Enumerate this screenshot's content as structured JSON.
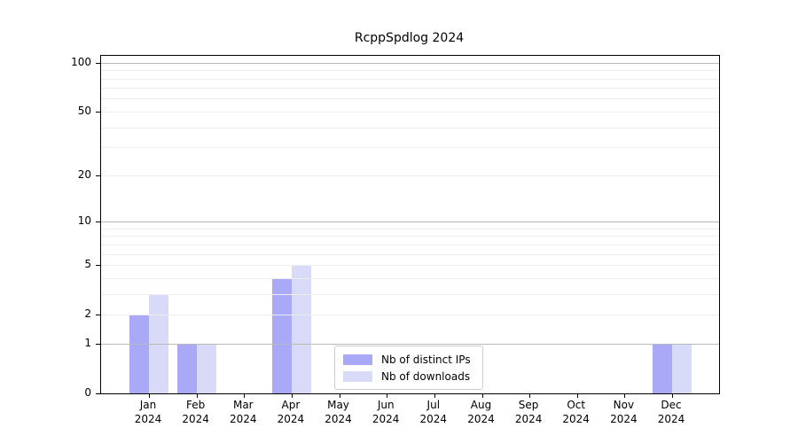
{
  "title": "RcppSpdlog 2024",
  "chart_data": {
    "type": "bar",
    "title": "RcppSpdlog 2024",
    "categories": [
      "Jan",
      "Feb",
      "Mar",
      "Apr",
      "May",
      "Jun",
      "Jul",
      "Aug",
      "Sep",
      "Oct",
      "Nov",
      "Dec"
    ],
    "category_year": "2024",
    "series": [
      {
        "name": "Nb of distinct IPs",
        "color": "#a9a9f7",
        "values": [
          2,
          1,
          0,
          4,
          0,
          0,
          0,
          0,
          0,
          0,
          0,
          1
        ]
      },
      {
        "name": "Nb of downloads",
        "color": "#d9d9f8",
        "values": [
          3,
          1,
          0,
          5,
          0,
          0,
          0,
          0,
          0,
          0,
          0,
          1
        ]
      }
    ],
    "xlabel": "",
    "ylabel": "",
    "y_scale": "log1p",
    "ylim": [
      0,
      110
    ],
    "y_ticks": [
      0,
      1,
      2,
      5,
      10,
      20,
      50,
      100
    ],
    "grid_major_values": [
      1,
      10,
      100
    ],
    "grid_minor_values": [
      2,
      3,
      4,
      5,
      6,
      7,
      8,
      9,
      20,
      30,
      40,
      50,
      60,
      70,
      80,
      90
    ],
    "grid": true,
    "legend_position": "lower center",
    "colors": {
      "grid_major": "#b9b9b9",
      "grid_minor": "#ededed",
      "axis": "#000000",
      "text": "#000000",
      "background": "#ffffff"
    }
  }
}
